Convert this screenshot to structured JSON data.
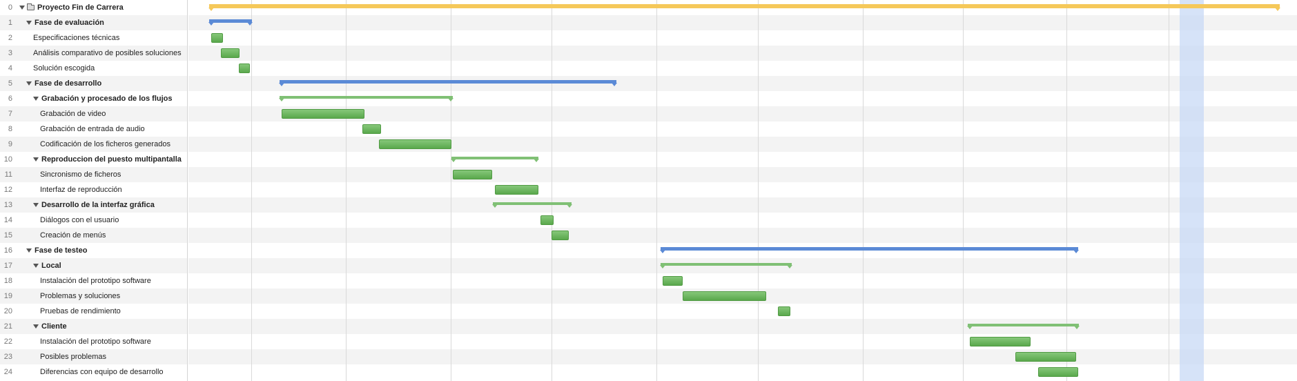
{
  "colors": {
    "project_bar": "#f5c85a",
    "phase_bar": "#5b8ad6",
    "group_bar": "#80c075",
    "task_bar": "#6db25f",
    "today_band": "#c8daf5",
    "row_alt": "#f3f3f3"
  },
  "icons": {
    "disclosure": "triangle-down-icon",
    "project": "folder-icon"
  },
  "tasks": [
    {
      "num": "0",
      "name": "Proyecto Fin de Carrera",
      "level": 0,
      "kind": "project",
      "start": 0.0,
      "end": 1020.0
    },
    {
      "num": "1",
      "name": "Fase de evaluación",
      "level": 1,
      "kind": "phase",
      "start": 0.0,
      "end": 41.0
    },
    {
      "num": "2",
      "name": "Especificaciones técnicas",
      "level": 2,
      "kind": "task",
      "start": 2.0,
      "end": 13.0
    },
    {
      "num": "3",
      "name": "Análisis comparativo de posibles soluciones",
      "level": 2,
      "kind": "task",
      "start": 11.0,
      "end": 29.0
    },
    {
      "num": "4",
      "name": "Solución escogida",
      "level": 2,
      "kind": "task",
      "start": 28.0,
      "end": 39.0
    },
    {
      "num": "5",
      "name": "Fase de desarrollo",
      "level": 1,
      "kind": "phase",
      "start": 67.0,
      "end": 388.0
    },
    {
      "num": "6",
      "name": "Grabación y procesado de los flujos",
      "level": 2,
      "kind": "group",
      "start": 67.0,
      "end": 232.0
    },
    {
      "num": "7",
      "name": "Grabación de video",
      "level": 3,
      "kind": "task",
      "start": 69.0,
      "end": 148.0
    },
    {
      "num": "8",
      "name": "Grabación de entrada de audio",
      "level": 3,
      "kind": "task",
      "start": 146.0,
      "end": 164.0
    },
    {
      "num": "9",
      "name": "Codificación de los ficheros generados",
      "level": 3,
      "kind": "task",
      "start": 162.0,
      "end": 231.0
    },
    {
      "num": "10",
      "name": "Reproduccion del puesto multipantalla",
      "level": 2,
      "kind": "group",
      "start": 231.0,
      "end": 314.0
    },
    {
      "num": "11",
      "name": "Sincronismo de ficheros",
      "level": 3,
      "kind": "task",
      "start": 232.0,
      "end": 270.0
    },
    {
      "num": "12",
      "name": "Interfaz de reproducción",
      "level": 3,
      "kind": "task",
      "start": 272.0,
      "end": 314.0
    },
    {
      "num": "13",
      "name": "Desarrollo de la interfaz gráfica",
      "level": 2,
      "kind": "group",
      "start": 270.0,
      "end": 345.0
    },
    {
      "num": "14",
      "name": "Diálogos con el usuario",
      "level": 3,
      "kind": "task",
      "start": 316.0,
      "end": 328.0
    },
    {
      "num": "15",
      "name": "Creación de menús",
      "level": 3,
      "kind": "task",
      "start": 326.0,
      "end": 343.0
    },
    {
      "num": "16",
      "name": "Fase de testeo",
      "level": 1,
      "kind": "phase",
      "start": 430.0,
      "end": 828.0
    },
    {
      "num": "17",
      "name": "Local",
      "level": 2,
      "kind": "group",
      "start": 430.0,
      "end": 555.0
    },
    {
      "num": "18",
      "name": "Instalación del prototipo software",
      "level": 3,
      "kind": "task",
      "start": 432.0,
      "end": 451.0
    },
    {
      "num": "19",
      "name": "Problemas y soluciones",
      "level": 3,
      "kind": "task",
      "start": 451.0,
      "end": 531.0
    },
    {
      "num": "20",
      "name": "Pruebas de rendimiento",
      "level": 3,
      "kind": "task",
      "start": 542.0,
      "end": 554.0
    },
    {
      "num": "21",
      "name": "Cliente",
      "level": 2,
      "kind": "group",
      "start": 723.0,
      "end": 829.0
    },
    {
      "num": "22",
      "name": "Instalación del prototipo software",
      "level": 3,
      "kind": "task",
      "start": 725.0,
      "end": 783.0
    },
    {
      "num": "23",
      "name": "Posibles problemas",
      "level": 3,
      "kind": "task",
      "start": 768.0,
      "end": 826.0
    },
    {
      "num": "24",
      "name": "Diferencias con equipo de desarrollo",
      "level": 3,
      "kind": "task",
      "start": 790.0,
      "end": 828.0
    }
  ],
  "timeline": {
    "span": [
      0.0,
      1030.0
    ],
    "period_boundaries": [
      40.0,
      130.0,
      230.0,
      326.0,
      426.0,
      523.0,
      623.0,
      718.0,
      817.0,
      914.0
    ],
    "today_range": [
      925.0,
      948.0
    ]
  }
}
